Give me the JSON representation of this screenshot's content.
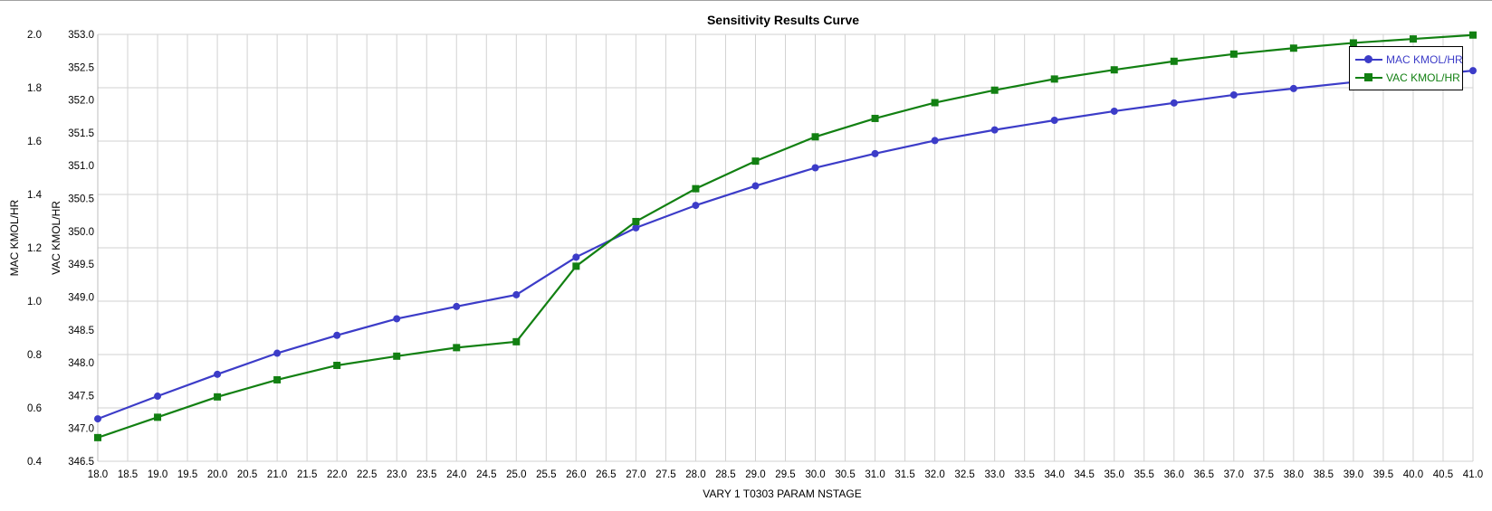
{
  "chart_data": {
    "type": "line",
    "title": "Sensitivity Results Curve",
    "xlabel": "VARY   1 T0303 PARAM NSTAGE",
    "ylabel_left1": "MAC KMOL/HR",
    "ylabel_left2": "VAC KMOL/HR",
    "xlim": [
      18.0,
      41.0
    ],
    "x_ticks": [
      "18.0",
      "18.5",
      "19.0",
      "19.5",
      "20.0",
      "20.5",
      "21.0",
      "21.5",
      "22.0",
      "22.5",
      "23.0",
      "23.5",
      "24.0",
      "24.5",
      "25.0",
      "25.5",
      "26.0",
      "26.5",
      "27.0",
      "27.5",
      "28.0",
      "28.5",
      "29.0",
      "29.5",
      "30.0",
      "30.5",
      "31.0",
      "31.5",
      "32.0",
      "32.5",
      "33.0",
      "33.5",
      "34.0",
      "34.5",
      "35.0",
      "35.5",
      "36.0",
      "36.5",
      "37.0",
      "37.5",
      "38.0",
      "38.5",
      "39.0",
      "39.5",
      "40.0",
      "40.5",
      "41.0"
    ],
    "y1_ticks": [
      "0.4",
      "0.6",
      "0.8",
      "1.0",
      "1.2",
      "1.4",
      "1.6",
      "1.8",
      "2.0"
    ],
    "y2_ticks": [
      "346.5",
      "347.0",
      "347.5",
      "348.0",
      "348.5",
      "349.0",
      "349.5",
      "350.0",
      "350.5",
      "351.0",
      "351.5",
      "352.0",
      "352.5",
      "353.0"
    ],
    "y1lim": [
      0.4,
      2.0
    ],
    "y2lim": [
      346.5,
      353.0
    ],
    "grid": true,
    "legend_position": "top-right",
    "x": [
      18,
      19,
      20,
      21,
      22,
      23,
      24,
      25,
      26,
      27,
      28,
      29,
      30,
      31,
      32,
      33,
      34,
      35,
      36,
      37,
      38,
      39,
      40,
      41
    ],
    "series": [
      {
        "name": "MAC KMOL/HR",
        "axis": "left1",
        "color": "#3c3cc8",
        "marker": "circle",
        "values": [
          0.559,
          0.644,
          0.726,
          0.805,
          0.872,
          0.934,
          0.98,
          1.024,
          1.165,
          1.275,
          1.359,
          1.432,
          1.5,
          1.553,
          1.602,
          1.642,
          1.678,
          1.712,
          1.743,
          1.773,
          1.797,
          1.821,
          1.843,
          1.864
        ]
      },
      {
        "name": "VAC KMOL/HR",
        "axis": "left2",
        "color": "#128012",
        "marker": "square",
        "values": [
          346.86,
          347.17,
          347.48,
          347.74,
          347.96,
          348.1,
          348.23,
          348.32,
          349.47,
          350.15,
          350.65,
          351.07,
          351.44,
          351.72,
          351.96,
          352.15,
          352.32,
          352.46,
          352.59,
          352.7,
          352.79,
          352.87,
          352.93,
          352.99
        ]
      }
    ]
  }
}
